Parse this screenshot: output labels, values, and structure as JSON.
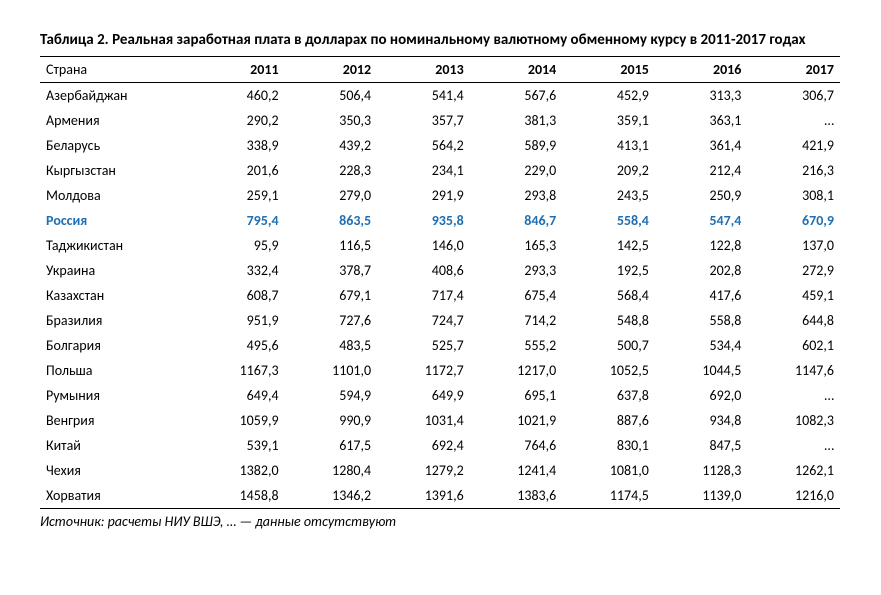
{
  "title": "Таблица 2. Реальная заработная плата в долларах по номинальному валютному обменному курсу в 2011-2017 годах",
  "source": "Источник: расчеты НИУ ВШЭ, … — данные отсутствуют",
  "table": {
    "country_header": "Страна",
    "columns": [
      "2011",
      "2012",
      "2013",
      "2014",
      "2015",
      "2016",
      "2017"
    ],
    "highlight_color": "#1f6fb2",
    "rows": [
      {
        "name": "Азербайджан",
        "values": [
          "460,2",
          "506,4",
          "541,4",
          "567,6",
          "452,9",
          "313,3",
          "306,7"
        ],
        "highlight": false
      },
      {
        "name": "Армения",
        "values": [
          "290,2",
          "350,3",
          "357,7",
          "381,3",
          "359,1",
          "363,1",
          "…"
        ],
        "highlight": false
      },
      {
        "name": "Беларусь",
        "values": [
          "338,9",
          "439,2",
          "564,2",
          "589,9",
          "413,1",
          "361,4",
          "421,9"
        ],
        "highlight": false
      },
      {
        "name": "Кыргызстан",
        "values": [
          "201,6",
          "228,3",
          "234,1",
          "229,0",
          "209,2",
          "212,4",
          "216,3"
        ],
        "highlight": false
      },
      {
        "name": "Молдова",
        "values": [
          "259,1",
          "279,0",
          "291,9",
          "293,8",
          "243,5",
          "250,9",
          "308,1"
        ],
        "highlight": false
      },
      {
        "name": "Россия",
        "values": [
          "795,4",
          "863,5",
          "935,8",
          "846,7",
          "558,4",
          "547,4",
          "670,9"
        ],
        "highlight": true
      },
      {
        "name": "Таджикистан",
        "values": [
          "95,9",
          "116,5",
          "146,0",
          "165,3",
          "142,5",
          "122,8",
          "137,0"
        ],
        "highlight": false
      },
      {
        "name": "Украина",
        "values": [
          "332,4",
          "378,7",
          "408,6",
          "293,3",
          "192,5",
          "202,8",
          "272,9"
        ],
        "highlight": false
      },
      {
        "name": "Казахстан",
        "values": [
          "608,7",
          "679,1",
          "717,4",
          "675,4",
          "568,4",
          "417,6",
          "459,1"
        ],
        "highlight": false
      },
      {
        "name": "Бразилия",
        "values": [
          "951,9",
          "727,6",
          "724,7",
          "714,2",
          "548,8",
          "558,8",
          "644,8"
        ],
        "highlight": false
      },
      {
        "name": "Болгария",
        "values": [
          "495,6",
          "483,5",
          "525,7",
          "555,2",
          "500,7",
          "534,4",
          "602,1"
        ],
        "highlight": false
      },
      {
        "name": "Польша",
        "values": [
          "1167,3",
          "1101,0",
          "1172,7",
          "1217,0",
          "1052,5",
          "1044,5",
          "1147,6"
        ],
        "highlight": false
      },
      {
        "name": "Румыния",
        "values": [
          "649,4",
          "594,9",
          "649,9",
          "695,1",
          "637,8",
          "692,0",
          "…"
        ],
        "highlight": false
      },
      {
        "name": "Венгрия",
        "values": [
          "1059,9",
          "990,9",
          "1031,4",
          "1021,9",
          "887,6",
          "934,8",
          "1082,3"
        ],
        "highlight": false
      },
      {
        "name": "Китай",
        "values": [
          "539,1",
          "617,5",
          "692,4",
          "764,6",
          "830,1",
          "847,5",
          "…"
        ],
        "highlight": false
      },
      {
        "name": "Чехия",
        "values": [
          "1382,0",
          "1280,4",
          "1279,2",
          "1241,4",
          "1081,0",
          "1128,3",
          "1262,1"
        ],
        "highlight": false
      },
      {
        "name": "Хорватия",
        "values": [
          "1458,8",
          "1346,2",
          "1391,6",
          "1383,6",
          "1174,5",
          "1139,0",
          "1216,0"
        ],
        "highlight": false
      }
    ]
  }
}
